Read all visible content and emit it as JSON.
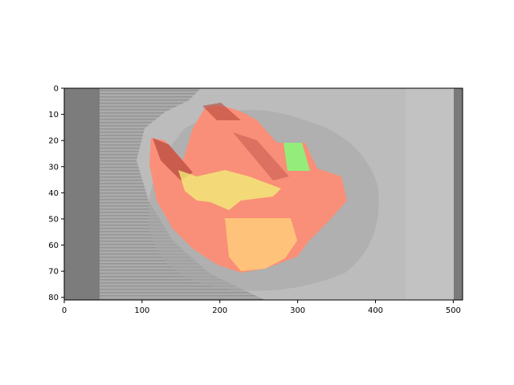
{
  "figure": {
    "xaxis": {
      "ticks": [
        "0",
        "100",
        "200",
        "300",
        "400",
        "500"
      ],
      "values": [
        0,
        100,
        200,
        300,
        400,
        500
      ],
      "range": [
        0,
        512
      ]
    },
    "yaxis": {
      "ticks": [
        "0",
        "10",
        "20",
        "30",
        "40",
        "50",
        "60",
        "70",
        "80"
      ],
      "values": [
        0,
        10,
        20,
        30,
        40,
        50,
        60,
        70,
        80
      ],
      "range": [
        81,
        0
      ]
    },
    "overlay_colors": {
      "background": "#bcbcbc",
      "ct_dark": "#7f7f7f",
      "red_region": "#ff8c73",
      "orange_region": "#ffc57a",
      "yellow_region": "#f2f27a",
      "green_region": "#8ef27a"
    }
  }
}
